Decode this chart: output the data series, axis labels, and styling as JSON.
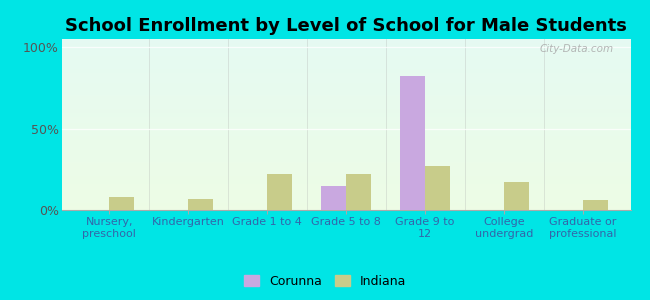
{
  "title": "School Enrollment by Level of School for Male Students",
  "categories": [
    "Nursery,\npreschool",
    "Kindergarten",
    "Grade 1 to 4",
    "Grade 5 to 8",
    "Grade 9 to\n12",
    "College\nundergrad",
    "Graduate or\nprofessional"
  ],
  "corunna": [
    0,
    0,
    0,
    15,
    82,
    0,
    0
  ],
  "indiana": [
    8,
    7,
    22,
    22,
    27,
    17,
    6
  ],
  "corunna_color": "#c9a8e0",
  "indiana_color": "#c8cc8a",
  "title_fontsize": 13,
  "ylabel_ticks": [
    "0%",
    "50%",
    "100%"
  ],
  "ylabel_values": [
    0,
    50,
    100
  ],
  "ylim": [
    0,
    105
  ],
  "background_outer": "#00e5e5",
  "bar_width": 0.32,
  "legend_corunna": "Corunna",
  "legend_indiana": "Indiana"
}
